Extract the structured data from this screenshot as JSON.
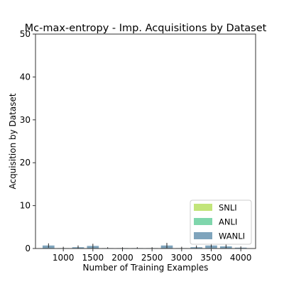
{
  "chart_data": {
    "type": "bar",
    "title": "Mc-max-entropy - Imp. Acquisitions by Dataset",
    "xlabel": "Number of Training Examples",
    "ylabel": "Acquisition by Dataset",
    "ylim": [
      0,
      50
    ],
    "yticks": [
      0,
      10,
      20,
      30,
      40,
      50
    ],
    "xlim": [
      530,
      4250
    ],
    "xticks": [
      1000,
      1500,
      2000,
      2500,
      3000,
      3500,
      4000
    ],
    "x": [
      750,
      1000,
      1250,
      1500,
      1750,
      2000,
      2250,
      2500,
      2750,
      3000,
      3250,
      3500,
      3750,
      4000
    ],
    "bar_width": 200,
    "stacked": true,
    "series": [
      {
        "name": "SNLI",
        "color": "#c2e57a",
        "values": [
          0,
          0,
          0,
          0,
          0,
          0,
          0,
          0,
          0,
          0,
          0,
          0,
          0,
          0
        ]
      },
      {
        "name": "ANLI",
        "color": "#7fd6ac",
        "values": [
          0,
          0,
          0,
          0,
          0,
          0,
          0,
          0,
          0,
          0,
          0,
          0,
          0,
          0
        ]
      },
      {
        "name": "WANLI",
        "color": "#7fa4bc",
        "values": [
          0.7,
          0.1,
          0.3,
          0.6,
          0.1,
          0.1,
          0.1,
          0.1,
          0.7,
          0.1,
          0.3,
          0.7,
          0.5,
          0.2
        ]
      }
    ],
    "errors": [
      0.5,
      0.3,
      0.4,
      0.5,
      0.2,
      0.2,
      0.2,
      0.2,
      0.6,
      0.3,
      0.4,
      0.5,
      0.4,
      0.3
    ],
    "legend": "lower-right",
    "grid": false
  }
}
